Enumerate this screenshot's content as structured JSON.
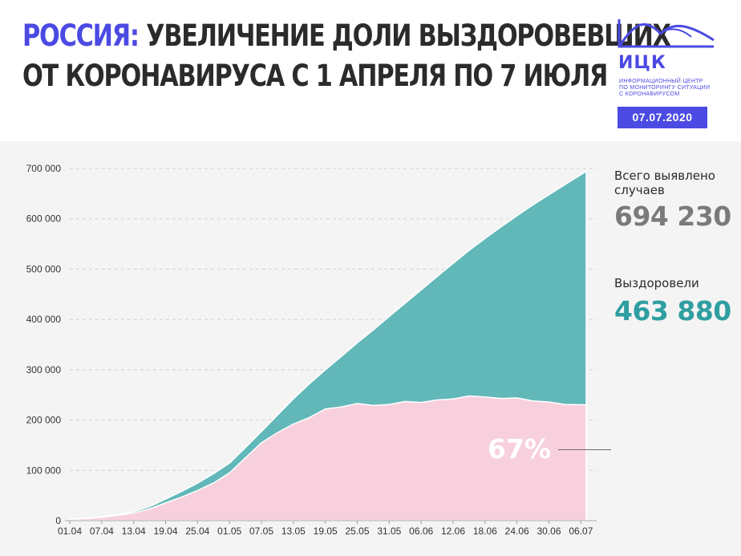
{
  "header": {
    "title_accent": "РОССИЯ:",
    "title_rest": " УВЕЛИЧЕНИЕ ДОЛИ ВЫЗДОРОВЕВШИХ",
    "title_line2": "ОТ КОРОНАВИРУСА С 1 АПРЕЛЯ ПО 7 ИЮЛЯ"
  },
  "logo": {
    "name": "ИЦК",
    "line1": "ИНФОРМАЦИОННЫЙ ЦЕНТР",
    "line2": "ПО МОНИТОРИНГУ СИТУАЦИИ",
    "line3": "С КОРОНАВИРУСОМ",
    "date": "07.07.2020",
    "color": "#4b4ae2"
  },
  "summary": {
    "total_label_1": "Всего выявлено",
    "total_label_2": "случаев",
    "total_value": "694 230",
    "recovered_label": "Выздоровели",
    "recovered_value": "463 880",
    "recovered_pct": "67%"
  },
  "colors": {
    "total_area": "#62b7b9",
    "active_area": "#f8d0dd",
    "total_value_text": "#7a7a7a",
    "recovered_value_text": "#2f9ea1"
  },
  "chart_data": {
    "type": "area",
    "x_ticks": [
      "01.04",
      "07.04",
      "13.04",
      "19.04",
      "25.04",
      "01.05",
      "07.05",
      "13.05",
      "19.05",
      "25.05",
      "31.05",
      "06.06",
      "12.06",
      "18.06",
      "24.06",
      "30.06",
      "06.07"
    ],
    "ylim": [
      0,
      700000
    ],
    "y_ticks": [
      0,
      100000,
      200000,
      300000,
      400000,
      500000,
      600000,
      700000
    ],
    "y_tick_labels": [
      "0",
      "100 000",
      "200 000",
      "300 000",
      "400 000",
      "500 000",
      "600 000",
      "700 000"
    ],
    "grid": true,
    "series": [
      {
        "role": "total",
        "x": [
          "01.04",
          "04.04",
          "07.04",
          "10.04",
          "13.04",
          "16.04",
          "19.04",
          "22.04",
          "25.04",
          "28.04",
          "01.05",
          "04.05",
          "07.05",
          "10.05",
          "13.05",
          "16.05",
          "19.05",
          "22.05",
          "25.05",
          "28.05",
          "31.05",
          "03.06",
          "06.06",
          "09.06",
          "12.06",
          "15.06",
          "18.06",
          "21.06",
          "24.06",
          "27.06",
          "30.06",
          "03.07",
          "07.07"
        ],
        "values": [
          2777,
          4731,
          7497,
          11917,
          18328,
          27938,
          42853,
          57999,
          74588,
          93558,
          114431,
          145268,
          177160,
          209688,
          242271,
          272043,
          299941,
          326448,
          353427,
          379051,
          405843,
          432277,
          458689,
          485253,
          511423,
          537210,
          561091,
          583879,
          606043,
          627646,
          647849,
          667883,
          694230
        ]
      },
      {
        "role": "active",
        "x": [
          "01.04",
          "04.04",
          "07.04",
          "10.04",
          "13.04",
          "16.04",
          "19.04",
          "22.04",
          "25.04",
          "28.04",
          "01.05",
          "04.05",
          "07.05",
          "10.05",
          "13.05",
          "16.05",
          "19.05",
          "22.05",
          "25.05",
          "28.05",
          "31.05",
          "03.06",
          "06.06",
          "09.06",
          "12.06",
          "15.06",
          "18.06",
          "21.06",
          "24.06",
          "27.06",
          "30.06",
          "03.07",
          "07.07"
        ],
        "values": [
          2500,
          4200,
          6700,
          10500,
          15500,
          23500,
          35500,
          47000,
          60000,
          75000,
          95000,
          125000,
          155000,
          175000,
          192000,
          205000,
          222000,
          226000,
          233000,
          229000,
          231000,
          237000,
          235000,
          240000,
          242000,
          248000,
          246000,
          243000,
          244000,
          238000,
          236000,
          231000,
          230350
        ]
      }
    ]
  }
}
